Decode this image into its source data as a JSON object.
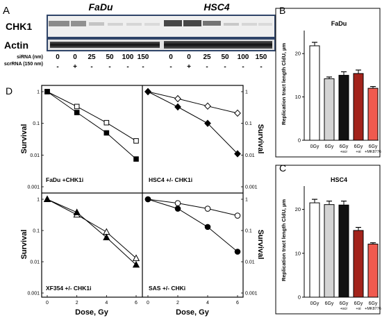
{
  "panel_labels": {
    "A": "A",
    "B": "B",
    "C": "C",
    "D": "D"
  },
  "western_blot": {
    "cell_lines": [
      "FaDu",
      "HSC4"
    ],
    "rows": [
      "CHK1",
      "Actin"
    ],
    "condition_labels": [
      "siRNA (nm)",
      "scrRNA (150 nm)"
    ],
    "sirna_values": [
      "0",
      "0",
      "25",
      "50",
      "100",
      "150"
    ],
    "scrrna_values": [
      "-",
      "+",
      "-",
      "-",
      "-",
      "-"
    ]
  },
  "colors": {
    "blot_border": "#2f4468",
    "white_bar": "#ffffff",
    "grey_bar": "#d4d4d4",
    "black_bar": "#111111",
    "darkred_bar": "#a3231b",
    "red_bar": "#f05a4f"
  },
  "chart_data": [
    {
      "type": "bar",
      "title": "FaDu",
      "ylabel": "Replication tract length CldU, µm",
      "ylim": [
        0,
        25
      ],
      "yticks": [
        "0",
        "10",
        "20"
      ],
      "categories": [
        "0Gy",
        "6Gy",
        "6Gy",
        "6Gy",
        "6Gy"
      ],
      "category_sublabels": [
        "",
        "",
        "+scr",
        "+si",
        "+MK8776"
      ],
      "values": [
        21.8,
        14.2,
        15.0,
        15.4,
        12.0
      ],
      "errors": [
        0.8,
        0.4,
        0.8,
        0.8,
        0.4
      ],
      "bar_colors": [
        "#ffffff",
        "#d4d4d4",
        "#111111",
        "#a3231b",
        "#f05a4f"
      ]
    },
    {
      "type": "bar",
      "title": "HSC4",
      "ylabel": "Replication tract length CldU, µm",
      "ylim": [
        0,
        25
      ],
      "yticks": [
        "0",
        "10",
        "20"
      ],
      "categories": [
        "0Gy",
        "6Gy",
        "6Gy",
        "6Gy",
        "6Gy"
      ],
      "category_sublabels": [
        "",
        "",
        "+scr",
        "+si",
        "+MK8776"
      ],
      "values": [
        21.5,
        21.1,
        21.0,
        15.2,
        12.1
      ],
      "errors": [
        0.8,
        0.8,
        0.9,
        0.7,
        0.3
      ],
      "bar_colors": [
        "#ffffff",
        "#d4d4d4",
        "#111111",
        "#a3231b",
        "#f05a4f"
      ]
    },
    {
      "type": "line",
      "label": "FaDu  +CHK1i",
      "xlabel": "Dose, Gy",
      "ylabel": "Survival",
      "yscale": "log",
      "ylim": [
        0.001,
        1
      ],
      "xlim": [
        0,
        6
      ],
      "yticks": [
        "1",
        "0.1",
        "0.01",
        "0.001"
      ],
      "series": [
        {
          "marker": "open-square",
          "x": [
            0,
            2,
            4,
            6
          ],
          "y": [
            1,
            0.34,
            0.105,
            0.028
          ]
        },
        {
          "marker": "filled-square",
          "x": [
            0,
            2,
            4,
            6
          ],
          "y": [
            1,
            0.22,
            0.05,
            0.0075
          ]
        }
      ]
    },
    {
      "type": "line",
      "label": "HSC4  +/- CHK1i",
      "xlabel": "Dose, Gy",
      "ylabel": "Survival",
      "yscale": "log",
      "ylim": [
        0.001,
        1
      ],
      "xlim": [
        0,
        6
      ],
      "yticks": [
        "1",
        "0.1",
        "0.01",
        "0.001"
      ],
      "series": [
        {
          "marker": "open-diamond",
          "x": [
            0,
            2,
            4,
            6
          ],
          "y": [
            1,
            0.6,
            0.35,
            0.21
          ]
        },
        {
          "marker": "filled-diamond",
          "x": [
            0,
            2,
            4,
            6
          ],
          "y": [
            1,
            0.33,
            0.1,
            0.011
          ]
        }
      ]
    },
    {
      "type": "line",
      "label": "XF354 +/- CHK1i",
      "xlabel": "Dose, Gy",
      "ylabel": "Survival",
      "yscale": "log",
      "ylim": [
        0.001,
        1
      ],
      "xlim": [
        0,
        6
      ],
      "yticks": [
        "1",
        "0.1",
        "0.01",
        "0.001"
      ],
      "series": [
        {
          "marker": "open-triangle",
          "x": [
            0,
            2,
            4,
            6
          ],
          "y": [
            1,
            0.32,
            0.09,
            0.013
          ]
        },
        {
          "marker": "filled-triangle",
          "x": [
            0,
            2,
            4,
            6
          ],
          "y": [
            1,
            0.38,
            0.06,
            0.008
          ]
        }
      ]
    },
    {
      "type": "line",
      "label": "SAS +/- CHKi",
      "xlabel": "Dose, Gy",
      "ylabel": "Survival",
      "yscale": "log",
      "ylim": [
        0.001,
        1
      ],
      "xlim": [
        0,
        6
      ],
      "yticks": [
        "1",
        "0.1",
        "0.01",
        "0.001"
      ],
      "series": [
        {
          "marker": "open-circle",
          "x": [
            0,
            2,
            4,
            6
          ],
          "y": [
            1,
            0.75,
            0.5,
            0.3
          ]
        },
        {
          "marker": "filled-circle",
          "x": [
            0,
            2,
            4,
            6
          ],
          "y": [
            1,
            0.5,
            0.13,
            0.021
          ]
        }
      ]
    }
  ]
}
